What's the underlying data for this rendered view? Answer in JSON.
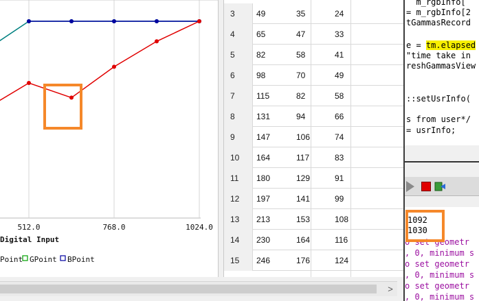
{
  "chart_data": {
    "type": "line",
    "xlabel": "Digital Input",
    "x_ticks": [
      "512.0",
      "768.0",
      "1024.0"
    ],
    "series": [
      {
        "name": "GPoint",
        "color": "#008080",
        "x": [
          384,
          512,
          640,
          768,
          896,
          1024
        ],
        "y": [
          218,
          255,
          255,
          255,
          255,
          255
        ]
      },
      {
        "name": "BPoint",
        "color": "#0000a0",
        "x": [
          512,
          640,
          768,
          896,
          1024
        ],
        "y": [
          255,
          255,
          255,
          255,
          255
        ]
      },
      {
        "name": "RPoint",
        "color": "#e00000",
        "x": [
          384,
          512,
          640,
          768,
          896,
          1024
        ],
        "y": [
          142,
          175,
          156,
          196,
          229,
          255
        ]
      }
    ]
  },
  "legend": {
    "items": [
      {
        "label": "Point",
        "color": "#e00000"
      },
      {
        "label": "GPoint",
        "color": "#00a000"
      },
      {
        "label": "BPoint",
        "color": "#0000a0"
      }
    ]
  },
  "table": {
    "rows": [
      {
        "n": "3",
        "r": "49",
        "g": "35",
        "b": "24"
      },
      {
        "n": "4",
        "r": "65",
        "g": "47",
        "b": "33"
      },
      {
        "n": "5",
        "r": "82",
        "g": "58",
        "b": "41"
      },
      {
        "n": "6",
        "r": "98",
        "g": "70",
        "b": "49"
      },
      {
        "n": "7",
        "r": "115",
        "g": "82",
        "b": "58"
      },
      {
        "n": "8",
        "r": "131",
        "g": "94",
        "b": "66"
      },
      {
        "n": "9",
        "r": "147",
        "g": "106",
        "b": "74"
      },
      {
        "n": "10",
        "r": "164",
        "g": "117",
        "b": "83"
      },
      {
        "n": "11",
        "r": "180",
        "g": "129",
        "b": "91"
      },
      {
        "n": "12",
        "r": "197",
        "g": "141",
        "b": "99"
      },
      {
        "n": "13",
        "r": "213",
        "g": "153",
        "b": "108"
      },
      {
        "n": "14",
        "r": "230",
        "g": "164",
        "b": "116"
      },
      {
        "n": "15",
        "r": "246",
        "g": "176",
        "b": "124"
      }
    ]
  },
  "editor": {
    "lines": [
      "  m_rgbInfo[",
      "= m_rgbInfo[2",
      "tGammasRecord",
      "",
      "e = ",
      "\"time take in",
      "reshGammasView",
      "",
      "",
      "::setUsrInfo(",
      "",
      "s from user*/",
      "= usrInfo;"
    ],
    "highlight": "tm.elapsed"
  },
  "output": {
    "values": [
      "1092",
      "1030"
    ],
    "messages": [
      "o set geometr",
      ", 0, minimum s",
      "o set geometr",
      ", 0, minimum s",
      "o set geometr",
      ", 0, minimum s"
    ]
  },
  "scroll": {
    "right_arrow": ">"
  }
}
